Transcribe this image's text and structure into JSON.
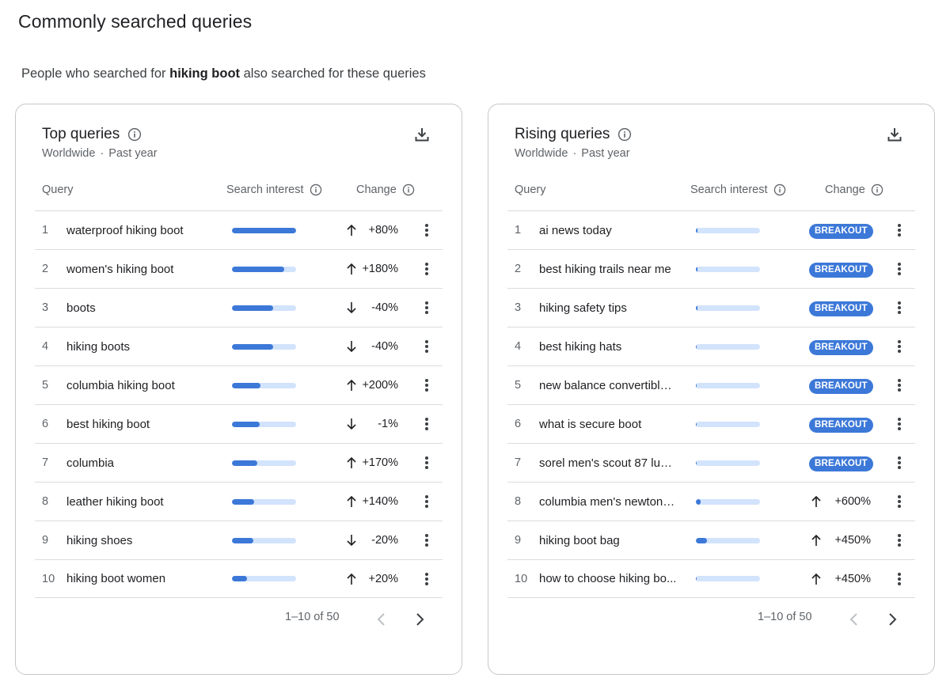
{
  "page": {
    "title": "Commonly searched queries",
    "subtitle_prefix": "People who searched for ",
    "subtitle_term": "hiking boot",
    "subtitle_suffix": " also searched for these queries"
  },
  "colors": {
    "accent": "#3c78d8",
    "bar_track": "#d2e3fc",
    "border": "#c4c7c9"
  },
  "top": {
    "title": "Top queries",
    "region": "Worldwide",
    "period": "Past year",
    "columns": {
      "query": "Query",
      "interest": "Search interest",
      "change": "Change"
    },
    "rows": [
      {
        "num": "1",
        "query": "waterproof hiking boot",
        "interest": 1.0,
        "direction": "up",
        "change": "+80%"
      },
      {
        "num": "2",
        "query": "women's hiking boot",
        "interest": 0.81,
        "direction": "up",
        "change": "+180%"
      },
      {
        "num": "3",
        "query": "boots",
        "interest": 0.64,
        "direction": "down",
        "change": "-40%"
      },
      {
        "num": "4",
        "query": "hiking boots",
        "interest": 0.64,
        "direction": "down",
        "change": "-40%"
      },
      {
        "num": "5",
        "query": "columbia hiking boot",
        "interest": 0.44,
        "direction": "up",
        "change": "+200%"
      },
      {
        "num": "6",
        "query": "best hiking boot",
        "interest": 0.43,
        "direction": "down",
        "change": "-1%"
      },
      {
        "num": "7",
        "query": "columbia",
        "interest": 0.39,
        "direction": "up",
        "change": "+170%"
      },
      {
        "num": "8",
        "query": "leather hiking boot",
        "interest": 0.34,
        "direction": "up",
        "change": "+140%"
      },
      {
        "num": "9",
        "query": "hiking shoes",
        "interest": 0.33,
        "direction": "down",
        "change": "-20%"
      },
      {
        "num": "10",
        "query": "hiking boot women",
        "interest": 0.23,
        "direction": "up",
        "change": "+20%"
      }
    ],
    "pagination": "1–10 of 50"
  },
  "rising": {
    "title": "Rising queries",
    "region": "Worldwide",
    "period": "Past year",
    "columns": {
      "query": "Query",
      "interest": "Search interest",
      "change": "Change"
    },
    "rows": [
      {
        "num": "1",
        "query": "ai news today",
        "interest": 0.02,
        "badge": "BREAKOUT"
      },
      {
        "num": "2",
        "query": "best hiking trails near me",
        "interest": 0.02,
        "badge": "BREAKOUT"
      },
      {
        "num": "3",
        "query": "hiking safety tips",
        "interest": 0.02,
        "badge": "BREAKOUT"
      },
      {
        "num": "4",
        "query": "best hiking hats",
        "interest": 0.01,
        "badge": "BREAKOUT"
      },
      {
        "num": "5",
        "query": "new balance convertible ...",
        "interest": 0.01,
        "badge": "BREAKOUT"
      },
      {
        "num": "6",
        "query": "what is secure boot",
        "interest": 0.01,
        "badge": "BREAKOUT"
      },
      {
        "num": "7",
        "query": "sorel men's scout 87 lux ...",
        "interest": 0.01,
        "badge": "BREAKOUT"
      },
      {
        "num": "8",
        "query": "columbia men's newton r...",
        "interest": 0.08,
        "direction": "up",
        "change": "+600%"
      },
      {
        "num": "9",
        "query": "hiking boot bag",
        "interest": 0.17,
        "direction": "up",
        "change": "+450%"
      },
      {
        "num": "10",
        "query": "how to choose hiking bo...",
        "interest": 0.01,
        "direction": "up",
        "change": "+450%"
      }
    ],
    "pagination": "1–10 of 50"
  }
}
